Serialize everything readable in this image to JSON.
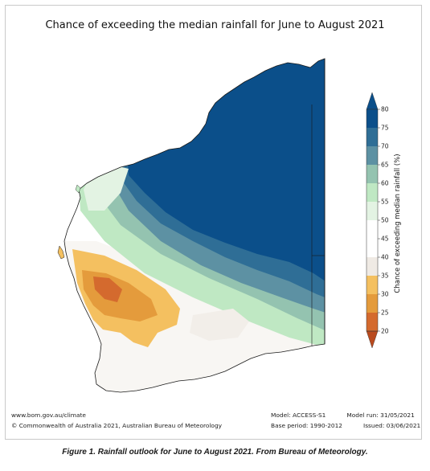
{
  "map": {
    "title": "Chance of exceeding the median rainfall for June to August 2021"
  },
  "legend": {
    "title": "Chance of exceeding median rainfall (%)",
    "ticks": [
      "80",
      "75",
      "70",
      "65",
      "60",
      "55",
      "50",
      "45",
      "40",
      "35",
      "30",
      "25",
      "20"
    ],
    "colors": [
      "#0b4f8a",
      "#2f6e96",
      "#5d91a3",
      "#94c3b0",
      "#bfe8c3",
      "#e3f3e3",
      "#ffffff",
      "#ffffff",
      "#efeae4",
      "#f4c060",
      "#e49b3c",
      "#d46a2e",
      "#b94a1e"
    ]
  },
  "footer": {
    "website": "www.bom.gov.au/climate",
    "copyright": "© Commonwealth of Australia 2021, Australian Bureau of Meteorology",
    "model": "Model: ACCESS-S1",
    "model_run": "Model run: 31/05/2021",
    "base_period": "Base period: 1990-2012",
    "issued": "Issued: 03/06/2021"
  },
  "caption": "Figure 1. Rainfall outlook for June to August 2021. From Bureau of Meteorology."
}
